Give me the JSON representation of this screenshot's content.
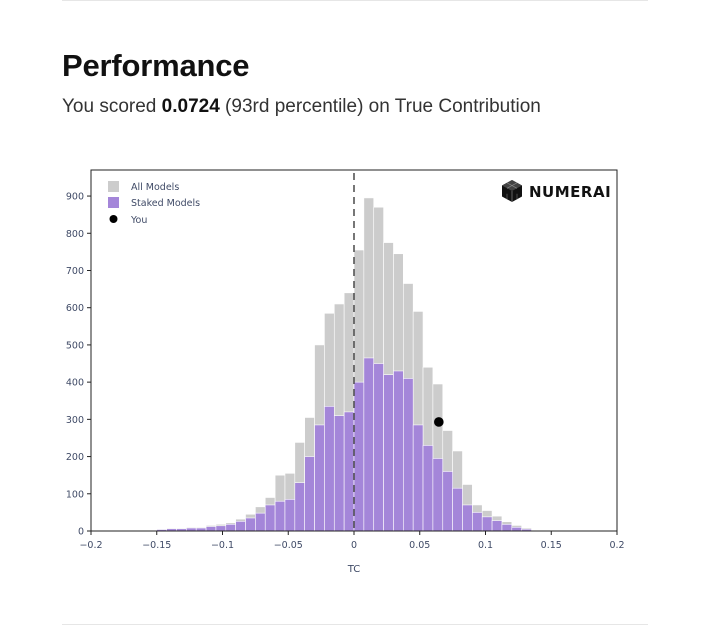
{
  "header": {
    "title": "Performance",
    "summary_prefix": "You scored ",
    "score": "0.0724",
    "summary_suffix": " (93rd percentile) on True Contribution"
  },
  "brand": {
    "logo_text": "NUMERAI",
    "logo_icon": "numerai-cube-icon"
  },
  "colors": {
    "all_models": "#cccccc",
    "staked_models": "#a486d9",
    "you": "#000000",
    "axis_text": "#3f4a66"
  },
  "chart_data": {
    "type": "bar",
    "xlabel": "TC",
    "ylabel": "",
    "xlim": [
      -0.2,
      0.2
    ],
    "ylim": [
      0,
      970
    ],
    "x_ticks": [
      -0.2,
      -0.15,
      -0.1,
      -0.05,
      0,
      0.05,
      0.1,
      0.15,
      0.2
    ],
    "x_tick_labels": [
      "−0.2",
      "−0.15",
      "−0.1",
      "−0.05",
      "0",
      "0.05",
      "0.1",
      "0.15",
      "0.2"
    ],
    "y_ticks": [
      0,
      100,
      200,
      300,
      400,
      500,
      600,
      700,
      800,
      900
    ],
    "y_tick_labels": [
      "0",
      "100",
      "200",
      "300",
      "400",
      "500",
      "600",
      "700",
      "800",
      "900"
    ],
    "legend_position": "top-left",
    "grid": false,
    "vline_x": 0,
    "bin_starts": [
      -0.15,
      -0.1425,
      -0.135,
      -0.1275,
      -0.12,
      -0.1125,
      -0.105,
      -0.0975,
      -0.09,
      -0.0825,
      -0.075,
      -0.0675,
      -0.06,
      -0.0525,
      -0.045,
      -0.0375,
      -0.03,
      -0.0225,
      -0.015,
      -0.0075,
      0,
      0.0075,
      0.015,
      0.0225,
      0.03,
      0.0375,
      0.045,
      0.0525,
      0.06,
      0.0675,
      0.075,
      0.0825,
      0.09,
      0.0975,
      0.105,
      0.1125,
      0.12,
      0.1275
    ],
    "bin_width": 0.0075,
    "series": [
      {
        "name": "All Models",
        "values": [
          5,
          8,
          8,
          10,
          10,
          15,
          18,
          22,
          32,
          45,
          65,
          90,
          150,
          155,
          238,
          305,
          500,
          585,
          610,
          640,
          755,
          895,
          870,
          775,
          745,
          665,
          590,
          440,
          395,
          270,
          215,
          125,
          70,
          55,
          40,
          25,
          15,
          8
        ]
      },
      {
        "name": "Staked Models",
        "values": [
          4,
          6,
          6,
          8,
          8,
          12,
          14,
          18,
          26,
          35,
          48,
          70,
          80,
          85,
          130,
          200,
          285,
          335,
          310,
          320,
          400,
          465,
          450,
          420,
          430,
          410,
          285,
          230,
          195,
          160,
          115,
          70,
          50,
          38,
          28,
          18,
          10,
          5
        ]
      },
      {
        "name": "You",
        "points": [
          {
            "x": 0.0645,
            "y": 293
          }
        ]
      }
    ]
  }
}
